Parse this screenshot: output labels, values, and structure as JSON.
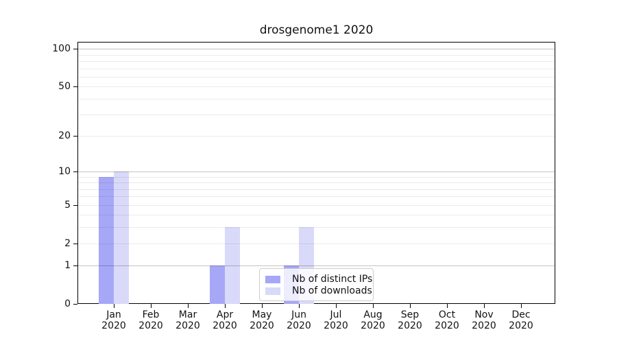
{
  "chart_data": {
    "type": "bar",
    "title": "drosgenome1 2020",
    "categories": [
      "Jan",
      "Feb",
      "Mar",
      "Apr",
      "May",
      "Jun",
      "Jul",
      "Aug",
      "Sep",
      "Oct",
      "Nov",
      "Dec"
    ],
    "category_year": "2020",
    "series": [
      {
        "name": "Nb of distinct IPs",
        "color": "#a7a7f7",
        "values": [
          9,
          0,
          0,
          1,
          0,
          1,
          0,
          0,
          0,
          0,
          0,
          0
        ]
      },
      {
        "name": "Nb of downloads",
        "color": "#d9d9f9",
        "values": [
          10,
          0,
          0,
          3,
          0,
          3,
          0,
          0,
          0,
          0,
          0,
          0
        ]
      }
    ],
    "y_axis": {
      "scale": "log1p",
      "tick_values": [
        0,
        1,
        2,
        5,
        10,
        20,
        50,
        100
      ],
      "tick_labels": [
        "0",
        "1",
        "2",
        "5",
        "10",
        "20",
        "50",
        "100"
      ],
      "major_gridlines": [
        1,
        10,
        100
      ],
      "minor_gridlines": [
        2,
        3,
        4,
        5,
        6,
        7,
        8,
        9,
        20,
        30,
        40,
        50,
        60,
        70,
        80,
        90
      ],
      "ylim": [
        0,
        115
      ]
    },
    "legend": {
      "position": "lower center-right inside plot"
    },
    "grid": true,
    "colors": {
      "spine": "#000000",
      "major_grid": "#c4c4c4",
      "minor_grid": "#ececec",
      "text": "#111111",
      "background": "#ffffff"
    }
  }
}
